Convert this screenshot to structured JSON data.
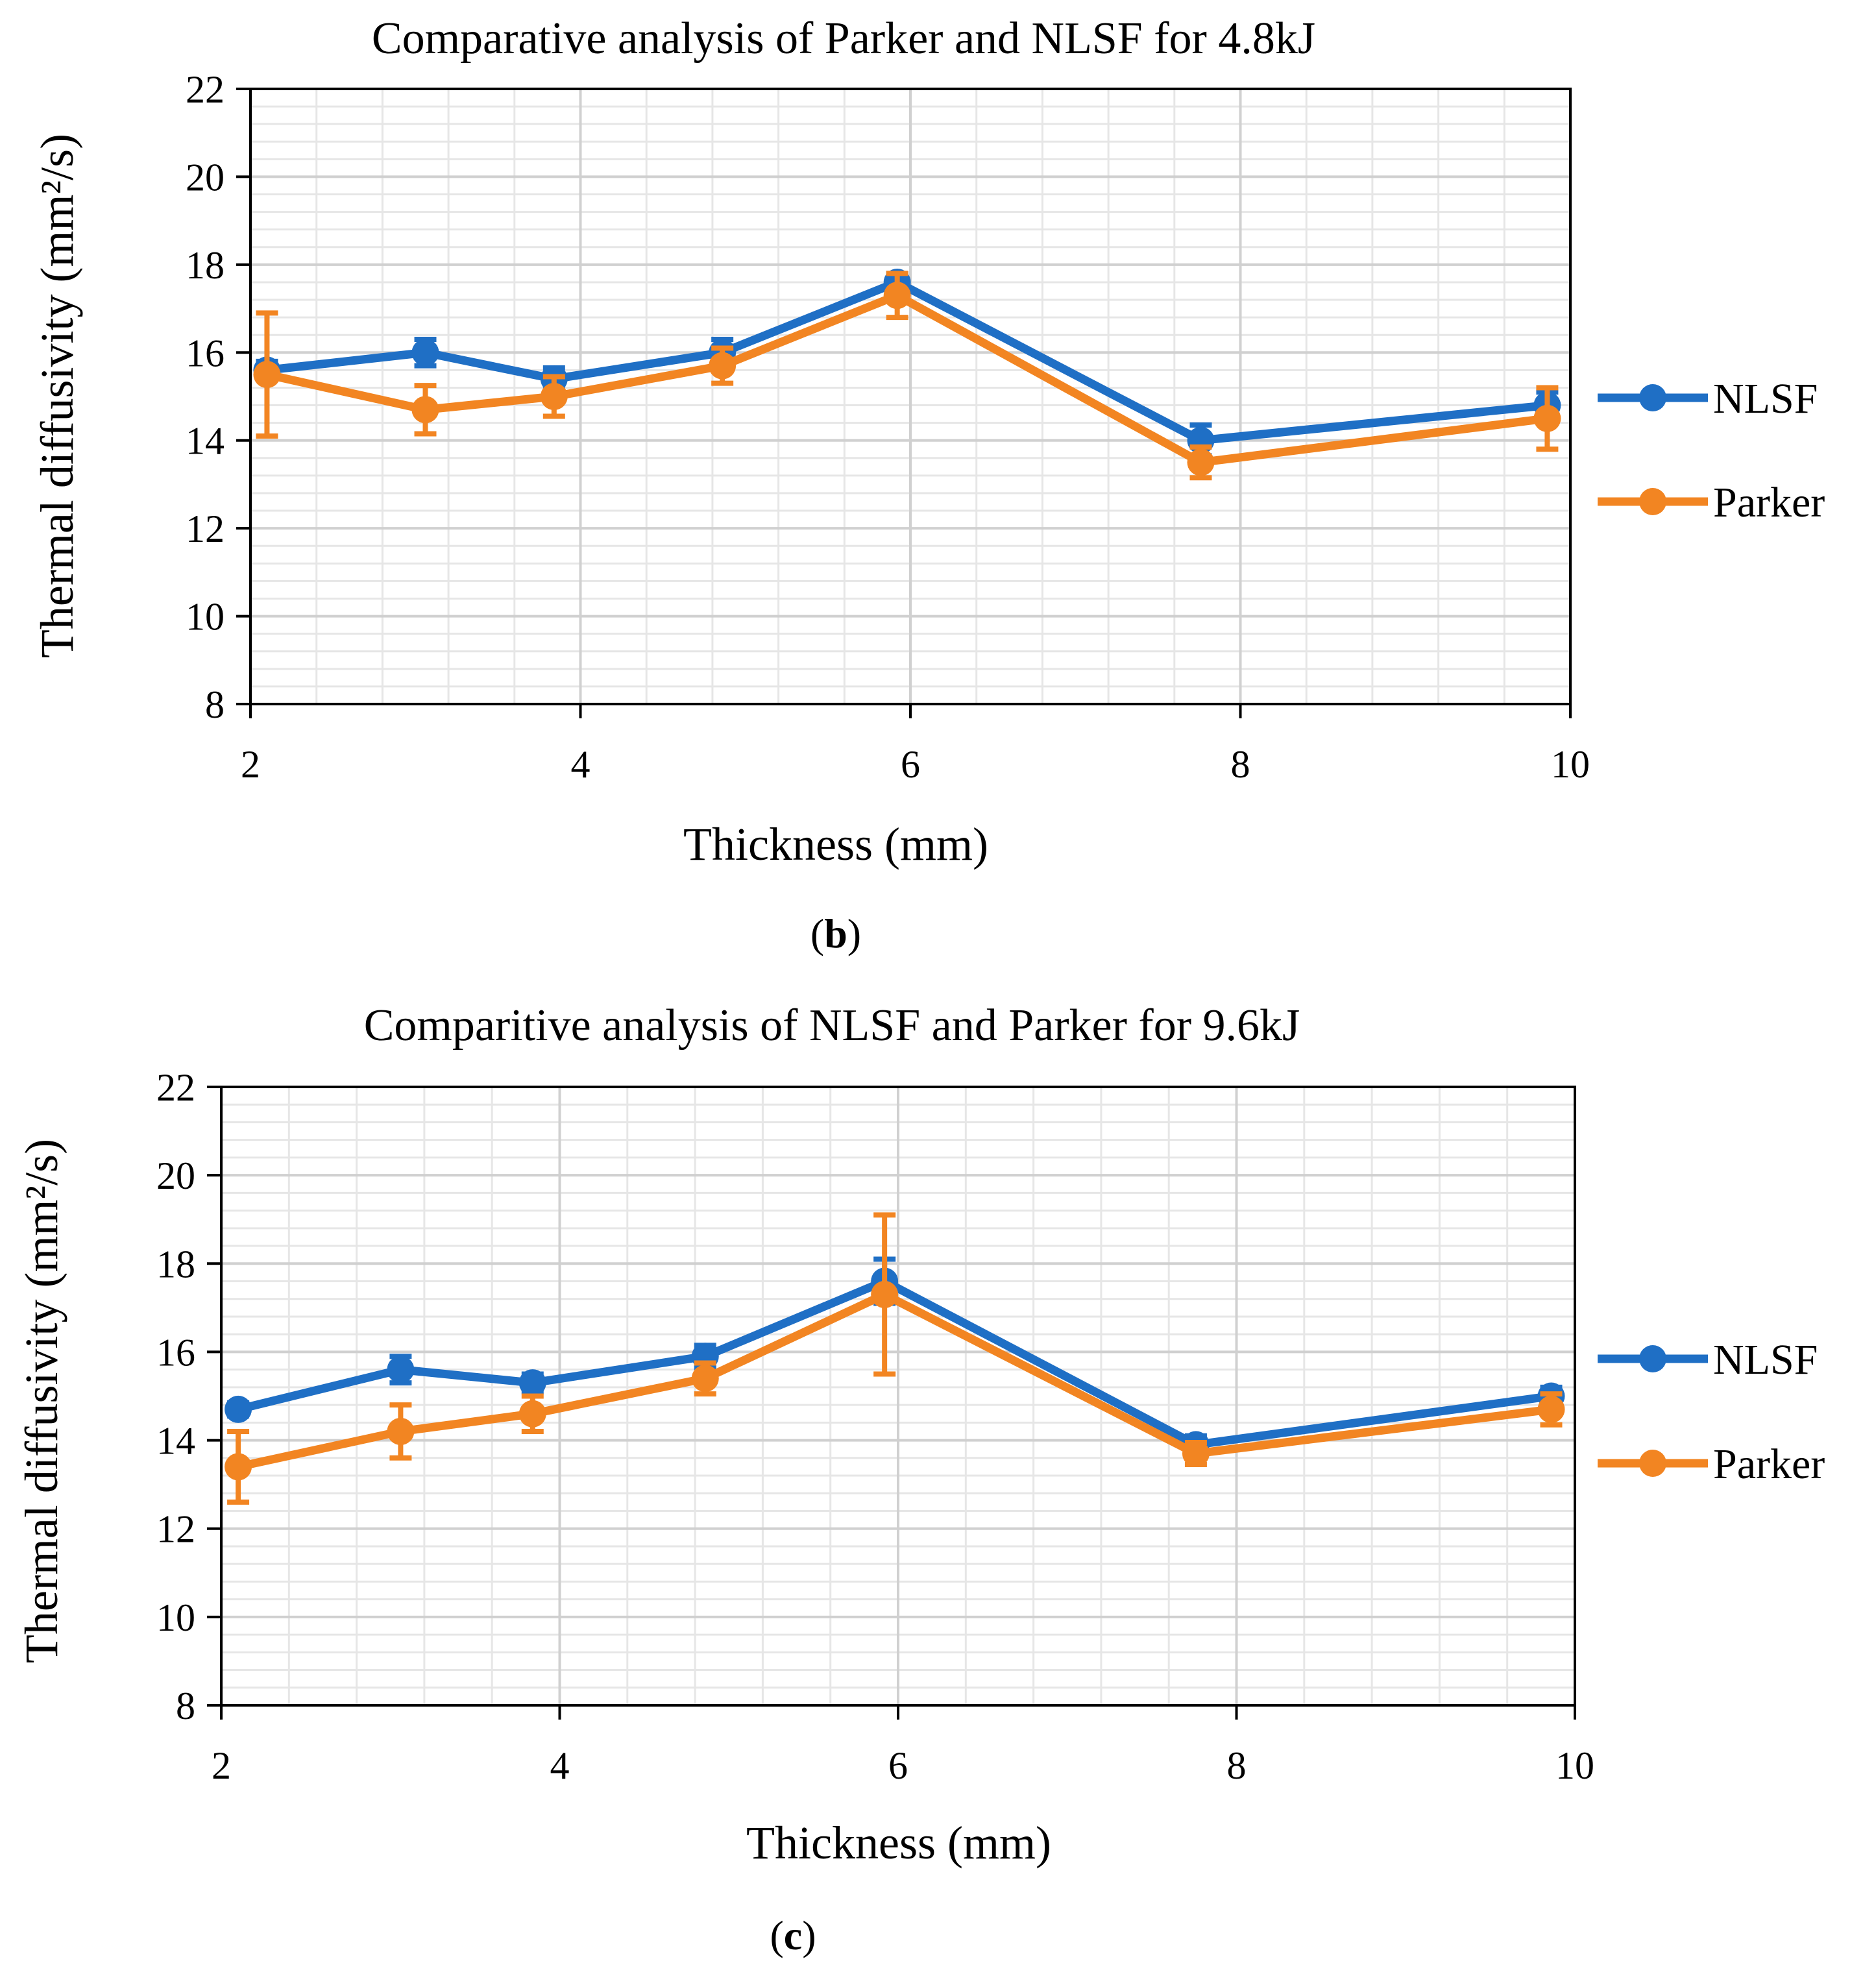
{
  "colors": {
    "NLSF": "#1F6FC5",
    "Parker": "#F28522",
    "grid_major": "#D0D0D0",
    "grid_minor": "#E6E6E6",
    "axis": "#000000"
  },
  "chart_data": [
    {
      "type": "line",
      "panel_label": "b",
      "title": "Comparative analysis of Parker and NLSF for 4.8kJ",
      "xlabel": "Thickness (mm)",
      "ylabel": "Thermal diffusivity (mm²/s)",
      "xlim": [
        2,
        10
      ],
      "ylim": [
        8,
        22
      ],
      "xticks": [
        "2",
        "4",
        "6",
        "8",
        "10"
      ],
      "yticks": [
        "8",
        "10",
        "12",
        "14",
        "16",
        "18",
        "20",
        "22"
      ],
      "grid": "major and minor",
      "legend_position": "right",
      "series": [
        {
          "name": "NLSF",
          "color": "#1F6FC5",
          "x": [
            2.1,
            3.06,
            3.84,
            4.86,
            5.92,
            7.76,
            9.86
          ],
          "y": [
            15.6,
            16.0,
            15.4,
            16.0,
            17.6,
            14.0,
            14.8
          ],
          "err": [
            0.2,
            0.3,
            0.25,
            0.3,
            0.2,
            0.35,
            0.3
          ]
        },
        {
          "name": "Parker",
          "color": "#F28522",
          "x": [
            2.1,
            3.06,
            3.84,
            4.86,
            5.92,
            7.76,
            9.86
          ],
          "y": [
            15.5,
            14.7,
            15.0,
            15.7,
            17.3,
            13.5,
            14.5
          ],
          "err": [
            1.4,
            0.55,
            0.45,
            0.4,
            0.5,
            0.35,
            0.7
          ]
        }
      ]
    },
    {
      "type": "line",
      "panel_label": "c",
      "title": "Comparitive analysis of NLSF and Parker for 9.6kJ",
      "xlabel": "Thickness (mm)",
      "ylabel": "Thermal diffusivity (mm²/s)",
      "xlim": [
        2,
        10
      ],
      "ylim": [
        8,
        22
      ],
      "xticks": [
        "2",
        "4",
        "6",
        "8",
        "10"
      ],
      "yticks": [
        "8",
        "10",
        "12",
        "14",
        "16",
        "18",
        "20",
        "22"
      ],
      "grid": "major and minor",
      "legend_position": "right",
      "series": [
        {
          "name": "NLSF",
          "color": "#1F6FC5",
          "x": [
            2.1,
            3.06,
            3.84,
            4.86,
            5.92,
            7.76,
            9.86
          ],
          "y": [
            14.7,
            15.6,
            15.3,
            15.9,
            17.6,
            13.9,
            15.0
          ],
          "err": [
            0.15,
            0.3,
            0.2,
            0.25,
            0.5,
            0.2,
            0.2
          ]
        },
        {
          "name": "Parker",
          "color": "#F28522",
          "x": [
            2.1,
            3.06,
            3.84,
            4.86,
            5.92,
            7.76,
            9.86
          ],
          "y": [
            13.4,
            14.2,
            14.6,
            15.4,
            17.3,
            13.7,
            14.7
          ],
          "err": [
            0.8,
            0.6,
            0.4,
            0.35,
            1.8,
            0.25,
            0.35
          ]
        }
      ]
    }
  ]
}
